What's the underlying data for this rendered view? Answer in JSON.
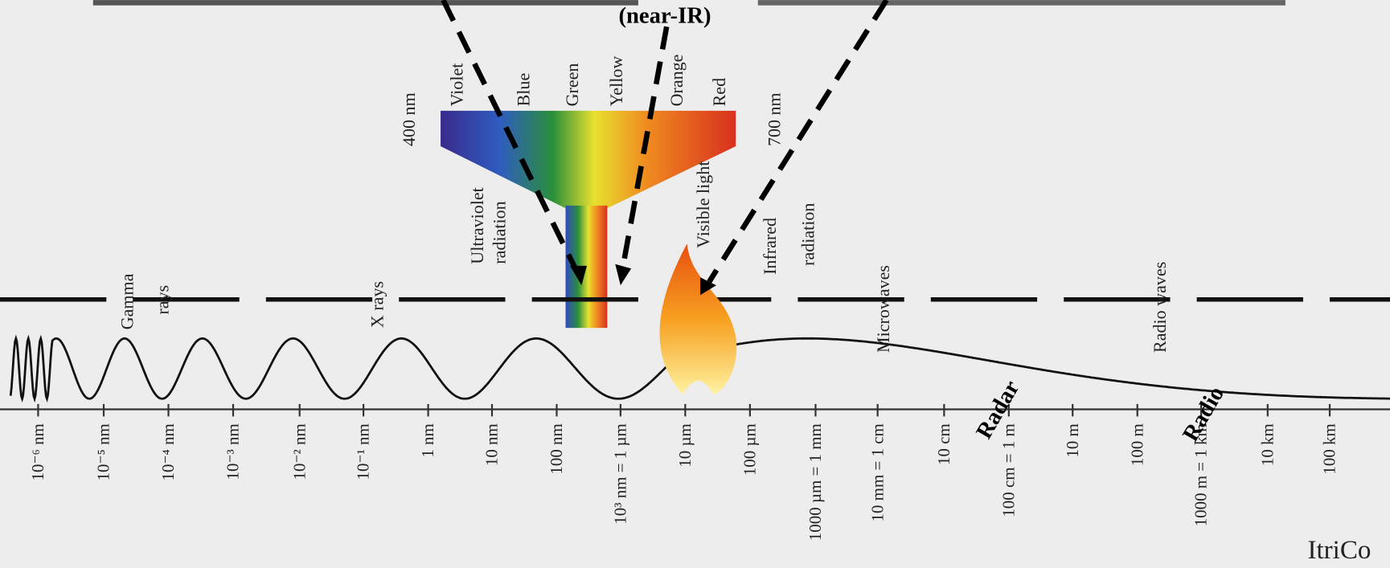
{
  "caption": "(near-IR)",
  "colors": [
    "Violet",
    "Blue",
    "Green",
    "Yellow",
    "Orange",
    "Red"
  ],
  "wavelength_ends": [
    "400 nm",
    "700 nm"
  ],
  "regions": [
    "Ultraviolet",
    "radiation",
    "Visible light",
    "Infrared",
    "radiation"
  ],
  "bands": [
    "Gamma",
    "rays",
    "X rays",
    "Microwaves",
    "Radio waves"
  ],
  "applications": [
    "Radar",
    "Radio"
  ],
  "scale": [
    "10⁻⁶ nm",
    "10⁻⁵ nm",
    "10⁻⁴ nm",
    "10⁻³ nm",
    "10⁻² nm",
    "10⁻¹ nm",
    "1 nm",
    "10 nm",
    "100 nm",
    "10³ nm = 1 µm",
    "10 µm",
    "100 µm",
    "1000 µm = 1 mm",
    "10 mm = 1 cm",
    "10 cm",
    "100 cm = 1 m",
    "10 m",
    "100 m",
    "1000 m = 1 km",
    "10 km",
    "100 km"
  ],
  "watermark": "ItriCo"
}
